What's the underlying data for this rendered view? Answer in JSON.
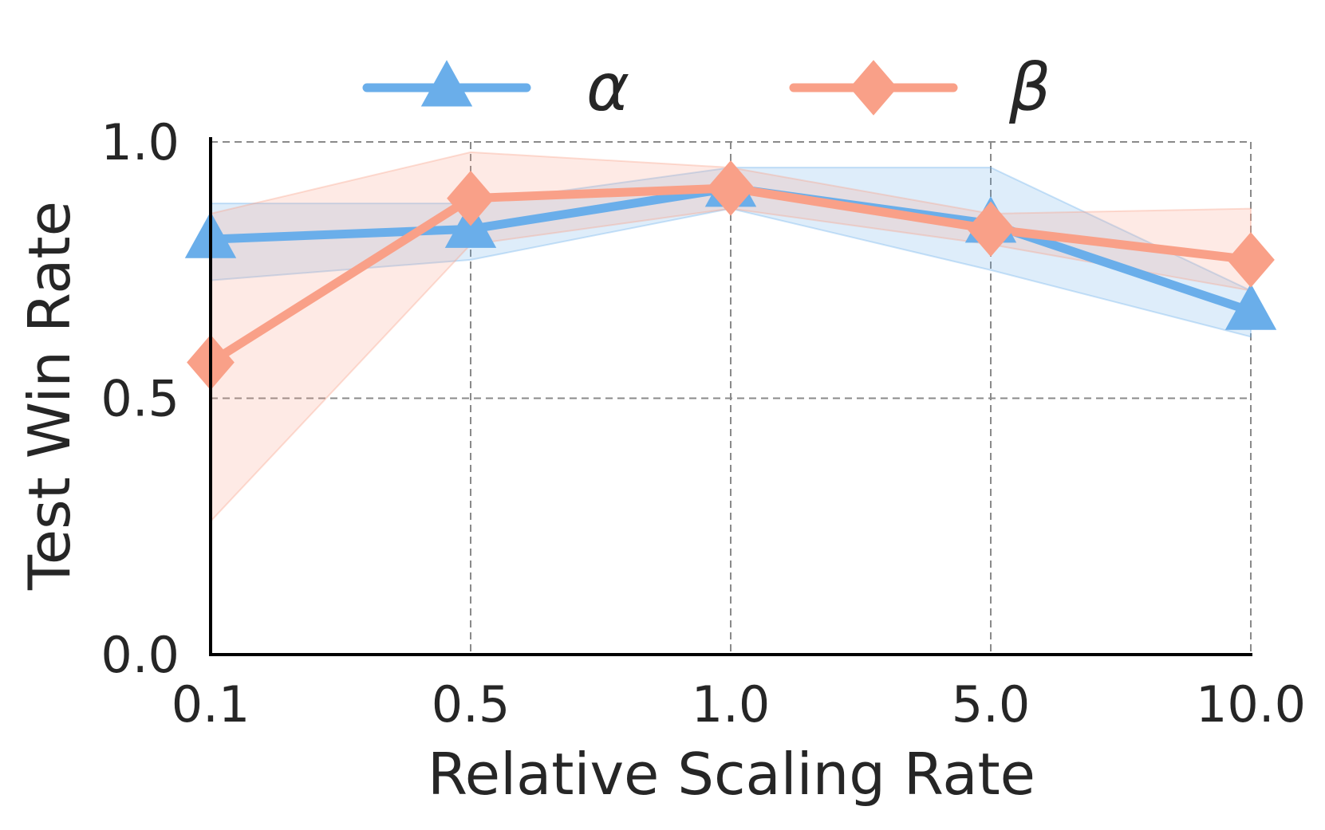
{
  "chart_data": {
    "type": "line",
    "title": "",
    "xlabel": "Relative Scaling Rate",
    "ylabel": "Test Win Rate",
    "x_tick_labels": [
      "0.1",
      "0.5",
      "1.0",
      "5.0",
      "10.0"
    ],
    "y_ticks": [
      0.0,
      0.5,
      1.0
    ],
    "y_tick_labels": [
      "0.0",
      "0.5",
      "1.0"
    ],
    "ylim": [
      0.0,
      1.0
    ],
    "grid": true,
    "legend_position": "top-center",
    "series": [
      {
        "name": "α",
        "color": "#6aaeea",
        "marker": "triangle",
        "values": [
          0.81,
          0.83,
          0.91,
          0.84,
          0.67
        ],
        "lower": [
          0.73,
          0.77,
          0.87,
          0.75,
          0.62
        ],
        "upper": [
          0.88,
          0.88,
          0.95,
          0.95,
          0.71
        ]
      },
      {
        "name": "β",
        "color": "#f9a088",
        "marker": "diamond",
        "values": [
          0.57,
          0.89,
          0.91,
          0.83,
          0.77
        ],
        "lower": [
          0.26,
          0.8,
          0.87,
          0.8,
          0.71
        ],
        "upper": [
          0.86,
          0.98,
          0.95,
          0.86,
          0.87
        ]
      }
    ]
  }
}
